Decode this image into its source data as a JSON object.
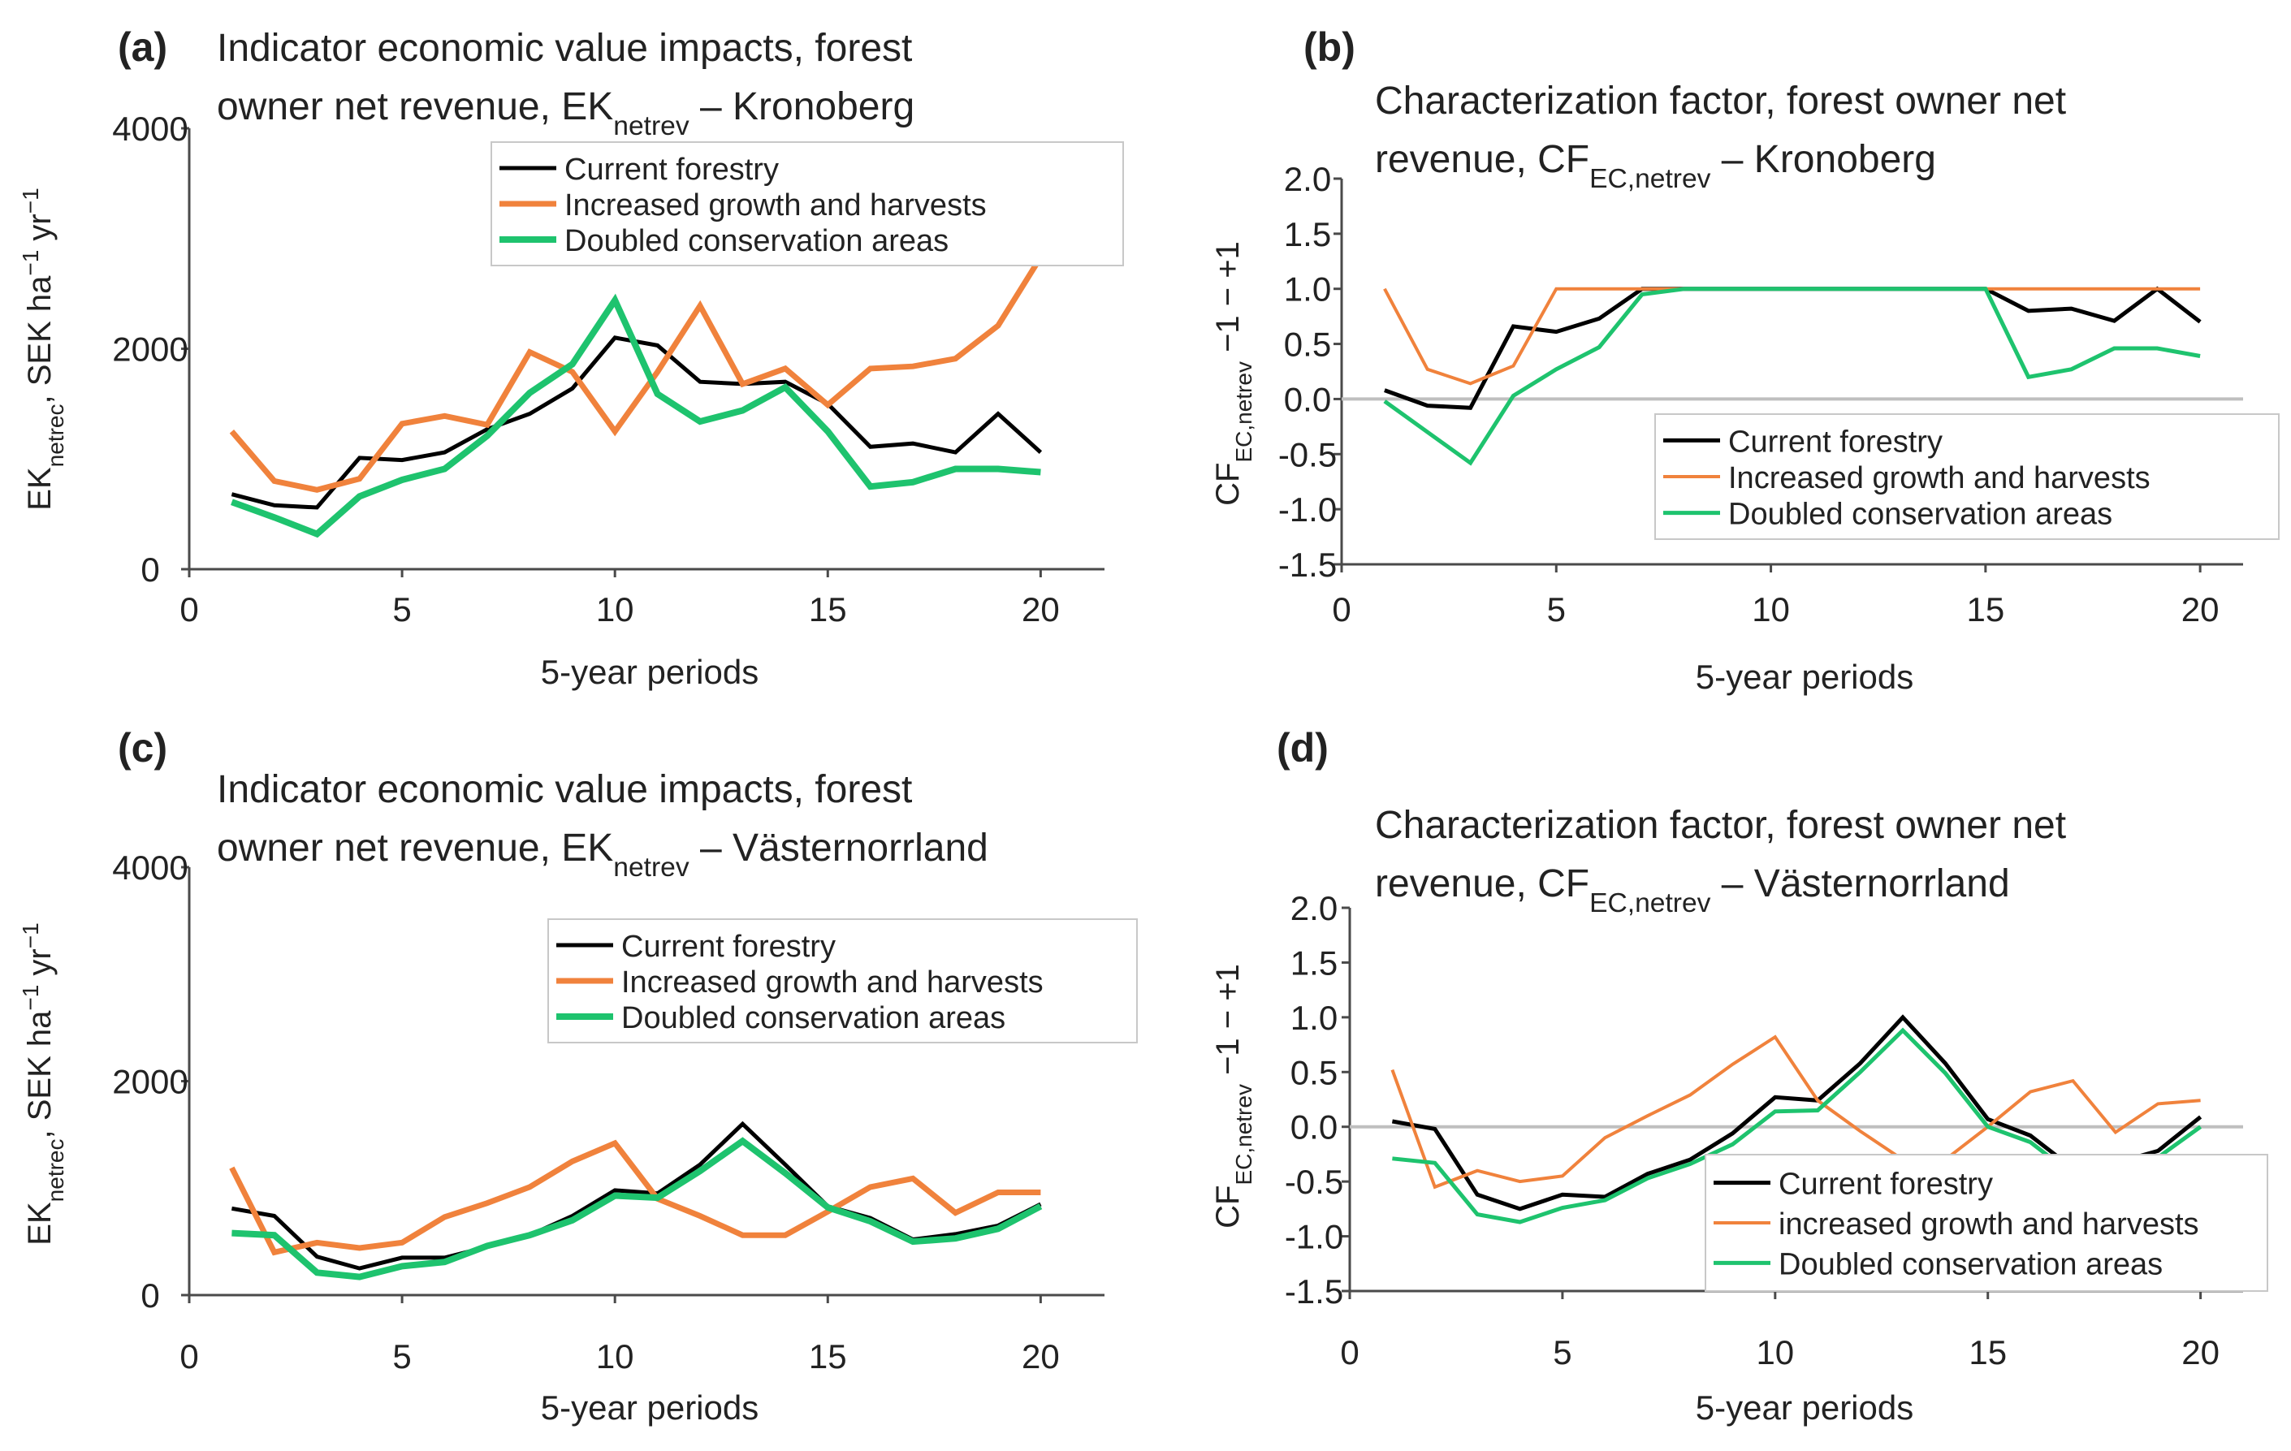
{
  "colors": {
    "current": "#000000",
    "increased": "#F0823C",
    "doubled": "#1EC36E",
    "zero_line": "#BFBFBF",
    "axis": "#4a4a4a",
    "text": "#222222"
  },
  "chart_data": [
    {
      "panel": "a",
      "panel_label": "(a)",
      "type": "line",
      "title_lines": [
        [
          {
            "t": "Indicator economic value impacts, forest"
          }
        ],
        [
          {
            "t": "owner net revenue, EK"
          },
          {
            "t": "netrev",
            "sub": true
          },
          {
            "t": " – Kronoberg"
          }
        ]
      ],
      "ylabel": [
        {
          "t": "EK"
        },
        {
          "t": "netrec",
          "sub": true
        },
        {
          "t": ", SEK ha"
        },
        {
          "t": "−1",
          "sup": true
        },
        {
          "t": " yr"
        },
        {
          "t": "−1",
          "sup": true
        }
      ],
      "xlabel": "5-year periods",
      "xlim": [
        0,
        21.5
      ],
      "ylim": [
        0,
        4000
      ],
      "xticks": [
        0,
        5,
        10,
        15,
        20
      ],
      "yticks": [
        0,
        2000,
        4000
      ],
      "yticklabels": [
        "0",
        "2000",
        "4000"
      ],
      "zero_line": false,
      "legend_position": "top-right",
      "series": [
        {
          "key": "current",
          "name": "Current forestry",
          "x": [
            1,
            2,
            3,
            4,
            5,
            6,
            7,
            8,
            9,
            10,
            11,
            12,
            13,
            14,
            15,
            16,
            17,
            18,
            19,
            20
          ],
          "values": [
            680,
            580,
            560,
            1010,
            990,
            1060,
            1270,
            1410,
            1640,
            2100,
            2030,
            1700,
            1680,
            1700,
            1500,
            1110,
            1140,
            1060,
            1410,
            1060
          ]
        },
        {
          "key": "increased",
          "name": "Increased growth and harvests",
          "x": [
            1,
            2,
            3,
            4,
            5,
            6,
            7,
            8,
            9,
            10,
            11,
            12,
            13,
            14,
            15,
            16,
            17,
            18,
            19,
            20
          ],
          "values": [
            1250,
            800,
            720,
            820,
            1320,
            1390,
            1310,
            1970,
            1790,
            1250,
            1790,
            2390,
            1680,
            1820,
            1490,
            1820,
            1840,
            1910,
            2210,
            2830
          ]
        },
        {
          "key": "doubled",
          "name": "Doubled conservation areas",
          "x": [
            1,
            2,
            3,
            4,
            5,
            6,
            7,
            8,
            9,
            10,
            11,
            12,
            13,
            14,
            15,
            16,
            17,
            18,
            19,
            20
          ],
          "values": [
            610,
            470,
            320,
            660,
            810,
            910,
            1210,
            1600,
            1860,
            2440,
            1590,
            1340,
            1440,
            1650,
            1250,
            750,
            790,
            910,
            910,
            880
          ]
        }
      ]
    },
    {
      "panel": "b",
      "panel_label": "(b)",
      "type": "line",
      "title_lines": [
        [
          {
            "t": "Characterization factor, forest owner net"
          }
        ],
        [
          {
            "t": "revenue, CF"
          },
          {
            "t": "EC,netrev",
            "sub": true
          },
          {
            "t": " – Kronoberg"
          }
        ]
      ],
      "ylabel": [
        {
          "t": "CF"
        },
        {
          "t": "EC,netrev",
          "sub": true
        },
        {
          "t": " −1 − +1"
        }
      ],
      "xlabel": "5-year periods",
      "xlim": [
        0,
        21
      ],
      "ylim": [
        -1.5,
        2.0
      ],
      "xticks": [
        0,
        5,
        10,
        15,
        20
      ],
      "yticks": [
        -1.5,
        -1.0,
        -0.5,
        0.0,
        0.5,
        1.0,
        1.5,
        2.0
      ],
      "yticklabels": [
        "-1.5",
        "-1.0",
        "-0.5",
        "0.0",
        "0.5",
        "1.0",
        "1.5",
        "2.0"
      ],
      "zero_line": true,
      "legend_position": "bottom-right",
      "series": [
        {
          "key": "current",
          "name": "Current forestry",
          "x": [
            1,
            2,
            3,
            4,
            5,
            6,
            7,
            8,
            9,
            10,
            11,
            12,
            13,
            14,
            15,
            16,
            17,
            18,
            19,
            20
          ],
          "values": [
            0.08,
            -0.06,
            -0.08,
            0.66,
            0.61,
            0.73,
            1.0,
            1.0,
            1.0,
            1.0,
            1.0,
            1.0,
            1.0,
            1.0,
            1.0,
            0.8,
            0.82,
            0.71,
            1.0,
            0.7
          ]
        },
        {
          "key": "increased",
          "name": "Increased growth and harvests",
          "x": [
            1,
            2,
            3,
            4,
            5,
            6,
            7,
            8,
            9,
            10,
            11,
            12,
            13,
            14,
            15,
            16,
            17,
            18,
            19,
            20
          ],
          "values": [
            1.0,
            0.27,
            0.14,
            0.3,
            1.0,
            1.0,
            1.0,
            1.0,
            1.0,
            1.0,
            1.0,
            1.0,
            1.0,
            1.0,
            1.0,
            1.0,
            1.0,
            1.0,
            1.0,
            1.0
          ]
        },
        {
          "key": "doubled",
          "name": "Doubled conservation areas",
          "x": [
            1,
            2,
            3,
            4,
            5,
            6,
            7,
            8,
            9,
            10,
            11,
            12,
            13,
            14,
            15,
            16,
            17,
            18,
            19,
            20
          ],
          "values": [
            -0.02,
            -0.3,
            -0.58,
            0.03,
            0.27,
            0.47,
            0.95,
            1.0,
            1.0,
            1.0,
            1.0,
            1.0,
            1.0,
            1.0,
            1.0,
            0.2,
            0.27,
            0.46,
            0.46,
            0.39
          ]
        }
      ]
    },
    {
      "panel": "c",
      "panel_label": "(c)",
      "type": "line",
      "title_lines": [
        [
          {
            "t": "Indicator economic value impacts, forest"
          }
        ],
        [
          {
            "t": "owner net revenue, EK"
          },
          {
            "t": "netrev",
            "sub": true
          },
          {
            "t": " – Västernorrland"
          }
        ]
      ],
      "ylabel": [
        {
          "t": "EK"
        },
        {
          "t": "netrec",
          "sub": true
        },
        {
          "t": ", SEK ha"
        },
        {
          "t": "−1",
          "sup": true
        },
        {
          "t": " yr"
        },
        {
          "t": "−1",
          "sup": true
        }
      ],
      "xlabel": "5-year periods",
      "xlim": [
        0,
        21.5
      ],
      "ylim": [
        0,
        4000
      ],
      "xticks": [
        0,
        5,
        10,
        15,
        20
      ],
      "yticks": [
        0,
        2000,
        4000
      ],
      "yticklabels": [
        "0",
        "2000",
        "4000"
      ],
      "zero_line": false,
      "legend_position": "top-right",
      "series": [
        {
          "key": "current",
          "name": "Current forestry",
          "x": [
            1,
            2,
            3,
            4,
            5,
            6,
            7,
            8,
            9,
            10,
            11,
            12,
            13,
            14,
            15,
            16,
            17,
            18,
            19,
            20
          ],
          "values": [
            810,
            740,
            360,
            250,
            350,
            350,
            450,
            560,
            740,
            980,
            950,
            1220,
            1600,
            1220,
            830,
            720,
            520,
            570,
            650,
            850
          ]
        },
        {
          "key": "increased",
          "name": "Increased growth and harvests",
          "x": [
            1,
            2,
            3,
            4,
            5,
            6,
            7,
            8,
            9,
            10,
            11,
            12,
            13,
            14,
            15,
            16,
            17,
            18,
            19,
            20
          ],
          "values": [
            1190,
            400,
            490,
            440,
            490,
            730,
            860,
            1010,
            1250,
            1420,
            900,
            740,
            560,
            560,
            780,
            1010,
            1090,
            770,
            960,
            960
          ]
        },
        {
          "key": "doubled",
          "name": "Doubled conservation areas",
          "x": [
            1,
            2,
            3,
            4,
            5,
            6,
            7,
            8,
            9,
            10,
            11,
            12,
            13,
            14,
            15,
            16,
            17,
            18,
            19,
            20
          ],
          "values": [
            580,
            560,
            210,
            170,
            270,
            310,
            460,
            560,
            700,
            930,
            910,
            1160,
            1440,
            1140,
            820,
            690,
            500,
            530,
            620,
            830
          ]
        }
      ]
    },
    {
      "panel": "d",
      "panel_label": "(d)",
      "type": "line",
      "title_lines": [
        [
          {
            "t": "Characterization factor, forest owner net"
          }
        ],
        [
          {
            "t": "revenue, CF"
          },
          {
            "t": "EC,netrev",
            "sub": true
          },
          {
            "t": " – Västernorrland"
          }
        ]
      ],
      "ylabel": [
        {
          "t": "CF"
        },
        {
          "t": "EC,netrev",
          "sub": true
        },
        {
          "t": " −1 − +1"
        }
      ],
      "xlabel": "5-year periods",
      "xlim": [
        0,
        21
      ],
      "ylim": [
        -1.5,
        2.0
      ],
      "xticks": [
        0,
        5,
        10,
        15,
        20
      ],
      "yticks": [
        -1.5,
        -1.0,
        -0.5,
        0.0,
        0.5,
        1.0,
        1.5,
        2.0
      ],
      "yticklabels": [
        "-1.5",
        "-1.0",
        "-0.5",
        "0.0",
        "0.5",
        "1.0",
        "1.5",
        "2.0"
      ],
      "zero_line": true,
      "legend_position": "bottom-right",
      "series": [
        {
          "key": "current",
          "name": "Current forestry",
          "x": [
            1,
            2,
            3,
            4,
            5,
            6,
            7,
            8,
            9,
            10,
            11,
            12,
            13,
            14,
            15,
            16,
            17,
            18,
            19,
            20
          ],
          "values": [
            0.05,
            -0.02,
            -0.62,
            -0.75,
            -0.62,
            -0.64,
            -0.43,
            -0.3,
            -0.06,
            0.27,
            0.24,
            0.58,
            1.0,
            0.58,
            0.07,
            -0.08,
            -0.38,
            -0.33,
            -0.22,
            0.09
          ]
        },
        {
          "key": "increased",
          "name": "increased growth and harvests",
          "x": [
            1,
            2,
            3,
            4,
            5,
            6,
            7,
            8,
            9,
            10,
            11,
            12,
            13,
            14,
            15,
            16,
            17,
            18,
            19,
            20
          ],
          "values": [
            0.52,
            -0.55,
            -0.4,
            -0.5,
            -0.45,
            -0.1,
            0.1,
            0.29,
            0.57,
            0.82,
            0.24,
            -0.04,
            -0.3,
            -0.3,
            0.0,
            0.32,
            0.42,
            -0.05,
            0.21,
            0.24
          ]
        },
        {
          "key": "doubled",
          "name": "Doubled conservation areas",
          "x": [
            1,
            2,
            3,
            4,
            5,
            6,
            7,
            8,
            9,
            10,
            11,
            12,
            13,
            14,
            15,
            16,
            17,
            18,
            19,
            20
          ],
          "values": [
            -0.29,
            -0.33,
            -0.8,
            -0.87,
            -0.74,
            -0.67,
            -0.47,
            -0.34,
            -0.16,
            0.14,
            0.15,
            0.5,
            0.88,
            0.49,
            0.0,
            -0.14,
            -0.44,
            -0.39,
            -0.28,
            0.0
          ]
        }
      ]
    }
  ]
}
